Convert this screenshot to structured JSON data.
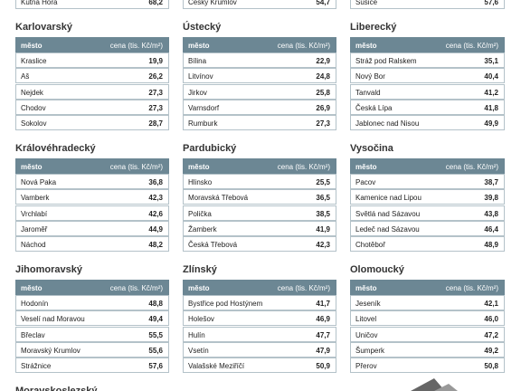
{
  "top_rows": [
    [
      "Kutná Hora",
      "68,2"
    ],
    [
      "Český Krumlov",
      "54,7"
    ],
    [
      "Sušice",
      "57,6"
    ]
  ],
  "columns": [
    "město",
    "cena (tis. Kč/m²)"
  ],
  "regions": [
    {
      "title": "Karlovarský",
      "rows": [
        [
          "Kraslice",
          "19,9"
        ],
        [
          "Aš",
          "26,2"
        ],
        [
          "Nejdek",
          "27,3"
        ],
        [
          "Chodov",
          "27,3"
        ],
        [
          "Sokolov",
          "28,7"
        ]
      ]
    },
    {
      "title": "Ústecký",
      "rows": [
        [
          "Bílina",
          "22,9"
        ],
        [
          "Litvínov",
          "24,8"
        ],
        [
          "Jirkov",
          "25,8"
        ],
        [
          "Varnsdorf",
          "26,9"
        ],
        [
          "Rumburk",
          "27,3"
        ]
      ]
    },
    {
      "title": "Liberecký",
      "rows": [
        [
          "Stráž pod Ralskem",
          "35,1"
        ],
        [
          "Nový Bor",
          "40,4"
        ],
        [
          "Tanvald",
          "41,2"
        ],
        [
          "Česká Lípa",
          "41,8"
        ],
        [
          "Jablonec nad Nisou",
          "49,9"
        ]
      ]
    },
    {
      "title": "Královéhradecký",
      "rows": [
        [
          "Nová Paka",
          "36,8"
        ],
        [
          "Vamberk",
          "42,3"
        ],
        [
          "Vrchlabí",
          "42,6"
        ],
        [
          "Jaroměř",
          "44,9"
        ],
        [
          "Náchod",
          "48,2"
        ]
      ]
    },
    {
      "title": "Pardubický",
      "rows": [
        [
          "Hlinsko",
          "25,5"
        ],
        [
          "Moravská Třebová",
          "36,5"
        ],
        [
          "Polička",
          "38,5"
        ],
        [
          "Žamberk",
          "41,9"
        ],
        [
          "Česká Třebová",
          "42,3"
        ]
      ]
    },
    {
      "title": "Vysočina",
      "rows": [
        [
          "Pacov",
          "38,7"
        ],
        [
          "Kamenice nad Lipou",
          "39,8"
        ],
        [
          "Světlá nad Sázavou",
          "43,8"
        ],
        [
          "Ledeč nad Sázavou",
          "46,4"
        ],
        [
          "Chotěboř",
          "48,9"
        ]
      ]
    },
    {
      "title": "Jihomoravský",
      "rows": [
        [
          "Hodonín",
          "48,8"
        ],
        [
          "Veselí nad Moravou",
          "49,4"
        ],
        [
          "Břeclav",
          "55,5"
        ],
        [
          "Moravský Krumlov",
          "55,6"
        ],
        [
          "Strážnice",
          "57,6"
        ]
      ]
    },
    {
      "title": "Zlínský",
      "rows": [
        [
          "Bystřice pod Hostýnem",
          "41,7"
        ],
        [
          "Holešov",
          "46,9"
        ],
        [
          "Hulín",
          "47,7"
        ],
        [
          "Vsetín",
          "47,9"
        ],
        [
          "Valašské Meziříčí",
          "50,9"
        ]
      ]
    },
    {
      "title": "Olomoucký",
      "rows": [
        [
          "Jeseník",
          "42,1"
        ],
        [
          "Litovel",
          "46,0"
        ],
        [
          "Uničov",
          "47,2"
        ],
        [
          "Šumperk",
          "49,2"
        ],
        [
          "Přerov",
          "50,8"
        ]
      ]
    },
    {
      "title": "Moravskoslezský",
      "rows": []
    }
  ]
}
